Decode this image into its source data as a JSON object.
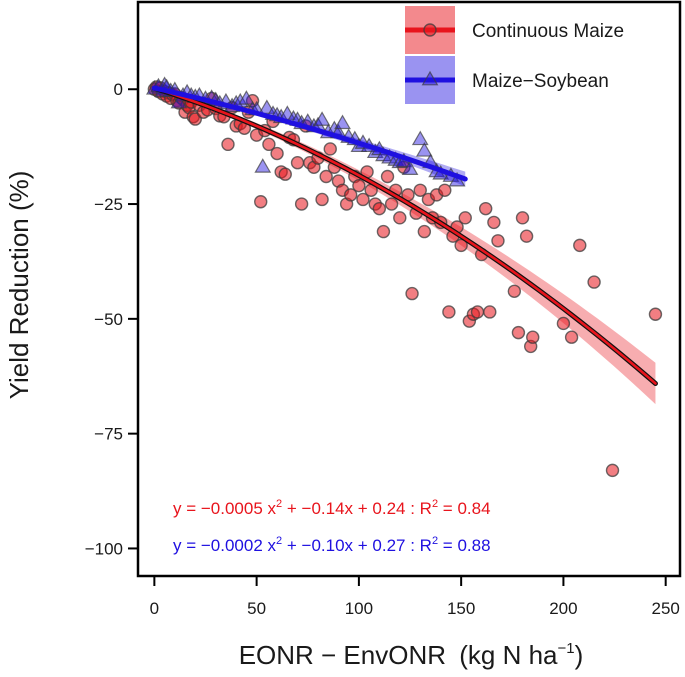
{
  "chart_data": {
    "type": "scatter",
    "title": "",
    "xlabel": "EONR − EnvONR",
    "xlabel_unit_prefix": "(kg N ha",
    "xlabel_unit_sup": "−1",
    "xlabel_unit_suffix": ")",
    "ylabel": "Yield Reduction (%)",
    "xlim": [
      -8,
      257
    ],
    "ylim": [
      -106,
      19
    ],
    "xticks": [
      0,
      50,
      100,
      150,
      200,
      250
    ],
    "yticks": [
      0,
      -25,
      -50,
      -75,
      -100
    ],
    "xtick_labels": [
      "0",
      "50",
      "100",
      "150",
      "200",
      "250"
    ],
    "ytick_labels": [
      "0",
      "−25",
      "−50",
      "−75",
      "−100"
    ],
    "legend_position": "top-right",
    "legend": [
      {
        "label": "Continuous Maize",
        "marker": "circle",
        "color": "#e8141c"
      },
      {
        "label": "Maize−Soybean",
        "marker": "triangle",
        "color": "#1f10e0"
      }
    ],
    "series": [
      {
        "name": "Continuous Maize",
        "color": "#e8141c",
        "marker": "circle",
        "fit": {
          "a": -0.0005,
          "b": -0.14,
          "c": 0.24,
          "x_range": [
            0,
            245
          ],
          "band_start": 0.5,
          "band_end": 4.5
        },
        "points": [
          [
            0,
            0
          ],
          [
            1,
            0.5
          ],
          [
            2,
            -0.5
          ],
          [
            3,
            0.3
          ],
          [
            4,
            -1
          ],
          [
            5,
            -0.5
          ],
          [
            6,
            -1.5
          ],
          [
            7,
            -0.8
          ],
          [
            8,
            -2
          ],
          [
            9,
            -1.2
          ],
          [
            10,
            -1
          ],
          [
            11,
            -2.5
          ],
          [
            12,
            -3
          ],
          [
            13,
            -1.8
          ],
          [
            14,
            -2.2
          ],
          [
            15,
            -5
          ],
          [
            16,
            -3.5
          ],
          [
            17,
            -4
          ],
          [
            18,
            -2.8
          ],
          [
            19,
            -6
          ],
          [
            20,
            -6.5
          ],
          [
            22,
            -3.5
          ],
          [
            24,
            -5
          ],
          [
            26,
            -4.5
          ],
          [
            28,
            -2
          ],
          [
            30,
            -4.2
          ],
          [
            32,
            -5.8
          ],
          [
            34,
            -6
          ],
          [
            36,
            -12
          ],
          [
            38,
            -4
          ],
          [
            40,
            -8
          ],
          [
            42,
            -7.5
          ],
          [
            44,
            -8.5
          ],
          [
            46,
            -5
          ],
          [
            48,
            -2.5
          ],
          [
            50,
            -10
          ],
          [
            52,
            -24.5
          ],
          [
            54,
            -9
          ],
          [
            56,
            -12
          ],
          [
            58,
            -7
          ],
          [
            60,
            -14
          ],
          [
            62,
            -18
          ],
          [
            64,
            -18.5
          ],
          [
            66,
            -10.5
          ],
          [
            68,
            -11
          ],
          [
            70,
            -16
          ],
          [
            72,
            -25
          ],
          [
            74,
            -8
          ],
          [
            76,
            -16
          ],
          [
            78,
            -17
          ],
          [
            80,
            -15
          ],
          [
            82,
            -24
          ],
          [
            84,
            -19
          ],
          [
            86,
            -13
          ],
          [
            88,
            -17
          ],
          [
            90,
            -20
          ],
          [
            92,
            -22
          ],
          [
            94,
            -25
          ],
          [
            96,
            -23
          ],
          [
            98,
            -19
          ],
          [
            100,
            -21
          ],
          [
            102,
            -24
          ],
          [
            104,
            -18
          ],
          [
            106,
            -22
          ],
          [
            108,
            -25
          ],
          [
            110,
            -26
          ],
          [
            112,
            -31
          ],
          [
            114,
            -19
          ],
          [
            116,
            -25
          ],
          [
            118,
            -22
          ],
          [
            120,
            -28
          ],
          [
            122,
            -17
          ],
          [
            124,
            -23
          ],
          [
            126,
            -44.5
          ],
          [
            128,
            -27
          ],
          [
            130,
            -22
          ],
          [
            132,
            -31
          ],
          [
            134,
            -24
          ],
          [
            136,
            -28
          ],
          [
            138,
            -23
          ],
          [
            140,
            -29
          ],
          [
            142,
            -22
          ],
          [
            144,
            -48.5
          ],
          [
            146,
            -32
          ],
          [
            148,
            -30
          ],
          [
            150,
            -34
          ],
          [
            152,
            -28
          ],
          [
            154,
            -50.5
          ],
          [
            156,
            -49
          ],
          [
            158,
            -48.5
          ],
          [
            160,
            -36
          ],
          [
            162,
            -26
          ],
          [
            164,
            -48.5
          ],
          [
            166,
            -29
          ],
          [
            168,
            -33
          ],
          [
            176,
            -44
          ],
          [
            178,
            -53
          ],
          [
            180,
            -28
          ],
          [
            182,
            -32
          ],
          [
            184,
            -56
          ],
          [
            185,
            -54
          ],
          [
            200,
            -51
          ],
          [
            204,
            -54
          ],
          [
            208,
            -34
          ],
          [
            215,
            -42
          ],
          [
            224,
            -83
          ],
          [
            245,
            -49
          ]
        ]
      },
      {
        "name": "Maize−Soybean",
        "color": "#1f10e0",
        "marker": "triangle",
        "fit": {
          "a": -0.0002,
          "b": -0.1,
          "c": 0.27,
          "x_range": [
            0,
            152
          ],
          "band_start": 0.3,
          "band_end": 1.6
        },
        "points": [
          [
            0,
            0
          ],
          [
            2,
            0.5
          ],
          [
            4,
            -0.5
          ],
          [
            5,
            0.8
          ],
          [
            6,
            0.3
          ],
          [
            8,
            -0.5
          ],
          [
            10,
            -0.3
          ],
          [
            12,
            -3
          ],
          [
            14,
            -1.5
          ],
          [
            16,
            -0.8
          ],
          [
            18,
            -1.5
          ],
          [
            20,
            -1.8
          ],
          [
            22,
            -1.5
          ],
          [
            25,
            -2.2
          ],
          [
            28,
            -2
          ],
          [
            30,
            -2.5
          ],
          [
            32,
            -3.2
          ],
          [
            35,
            -2.8
          ],
          [
            38,
            -3.8
          ],
          [
            40,
            -3.2
          ],
          [
            42,
            -2.8
          ],
          [
            45,
            -2.2
          ],
          [
            48,
            -4.5
          ],
          [
            50,
            -4.5
          ],
          [
            53,
            -17
          ],
          [
            55,
            -4.2
          ],
          [
            58,
            -5.5
          ],
          [
            60,
            -5.8
          ],
          [
            62,
            -6.2
          ],
          [
            65,
            -5.5
          ],
          [
            68,
            -6.5
          ],
          [
            70,
            -6.8
          ],
          [
            72,
            -7.5
          ],
          [
            75,
            -7.2
          ],
          [
            78,
            -8.2
          ],
          [
            80,
            -8
          ],
          [
            82,
            -6.8
          ],
          [
            85,
            -9.5
          ],
          [
            88,
            -8.8
          ],
          [
            90,
            -9.5
          ],
          [
            92,
            -7.5
          ],
          [
            95,
            -10.5
          ],
          [
            98,
            -11
          ],
          [
            100,
            -12.5
          ],
          [
            102,
            -11.8
          ],
          [
            105,
            -12.5
          ],
          [
            108,
            -13.8
          ],
          [
            110,
            -13.2
          ],
          [
            112,
            -14.5
          ],
          [
            115,
            -15
          ],
          [
            118,
            -15.5
          ],
          [
            120,
            -16
          ],
          [
            122,
            -15.8
          ],
          [
            125,
            -17.5
          ],
          [
            130,
            -11
          ],
          [
            132,
            -13.5
          ],
          [
            135,
            -16
          ],
          [
            138,
            -18
          ],
          [
            140,
            -18.5
          ],
          [
            145,
            -19
          ],
          [
            148,
            -20
          ]
        ]
      }
    ],
    "equations": [
      {
        "color": "#e8141c",
        "main": "y = −0.0005 x",
        "sup": "2",
        "rest": " + −0.14x + 0.24 : R",
        "sup2": "2",
        "tail": " = 0.84"
      },
      {
        "color": "#1f10e0",
        "main": "y = −0.0002 x",
        "sup": "2",
        "rest": " + −0.10x + 0.27 : R",
        "sup2": "2",
        "tail": " = 0.88"
      }
    ]
  }
}
